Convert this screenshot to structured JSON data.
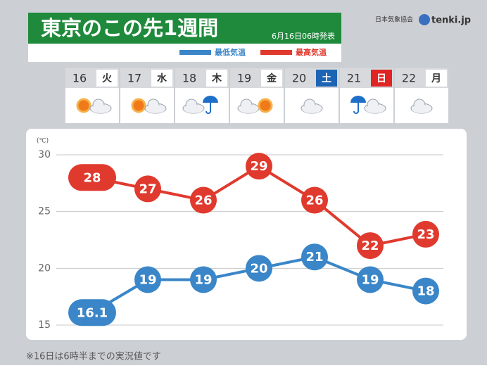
{
  "header": {
    "title": "東京のこの先1週間",
    "issued": "6月16日06時発表",
    "org": "日本気象協会",
    "brand": "tenki.jp"
  },
  "chart_data": {
    "type": "line",
    "categories": [
      "16",
      "17",
      "18",
      "19",
      "20",
      "21",
      "22"
    ],
    "weekdays": [
      "火",
      "水",
      "木",
      "金",
      "土",
      "日",
      "月"
    ],
    "y_unit": "(℃)",
    "ylim": [
      15,
      30
    ],
    "yticks": [
      15,
      20,
      25,
      30
    ],
    "grid": true,
    "series": [
      {
        "name": "最低気温",
        "color": "#3a86c8",
        "values": [
          16.1,
          19,
          19,
          20,
          21,
          19,
          18
        ]
      },
      {
        "name": "最高気温",
        "color": "#e03a2e",
        "values": [
          28,
          27,
          26,
          29,
          26,
          22,
          23
        ]
      }
    ]
  },
  "footnote": "※16日は6時半までの実況値です"
}
